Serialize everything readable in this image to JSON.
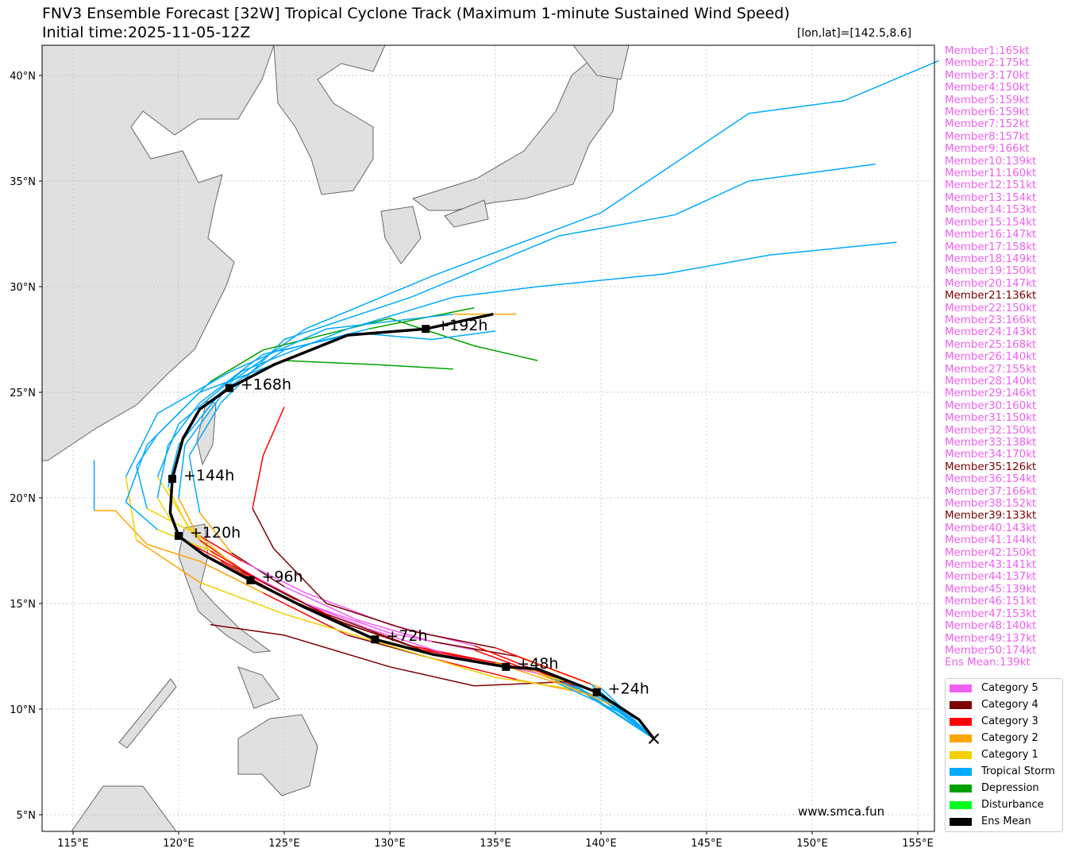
{
  "title": "FNV3 Ensemble Forecast [32W] Tropical Cyclone Track (Maximum 1-minute Sustained Wind Speed)",
  "subtitle": "Initial time:2025-11-05-12Z",
  "position_label": "[lon,lat]=[142.5,8.6]",
  "website": "www.smca.fun",
  "members": [
    {
      "label": "Member1:165kt",
      "cat": "5"
    },
    {
      "label": "Member2:175kt",
      "cat": "5"
    },
    {
      "label": "Member3:170kt",
      "cat": "5"
    },
    {
      "label": "Member4:150kt",
      "cat": "5"
    },
    {
      "label": "Member5:159kt",
      "cat": "5"
    },
    {
      "label": "Member6:159kt",
      "cat": "5"
    },
    {
      "label": "Member7:152kt",
      "cat": "5"
    },
    {
      "label": "Member8:157kt",
      "cat": "5"
    },
    {
      "label": "Member9:166kt",
      "cat": "5"
    },
    {
      "label": "Member10:139kt",
      "cat": "5"
    },
    {
      "label": "Member11:160kt",
      "cat": "5"
    },
    {
      "label": "Member12:151kt",
      "cat": "5"
    },
    {
      "label": "Member13:154kt",
      "cat": "5"
    },
    {
      "label": "Member14:153kt",
      "cat": "5"
    },
    {
      "label": "Member15:154kt",
      "cat": "5"
    },
    {
      "label": "Member16:147kt",
      "cat": "5"
    },
    {
      "label": "Member17:158kt",
      "cat": "5"
    },
    {
      "label": "Member18:149kt",
      "cat": "5"
    },
    {
      "label": "Member19:150kt",
      "cat": "5"
    },
    {
      "label": "Member20:147kt",
      "cat": "5"
    },
    {
      "label": "Member21:136kt",
      "cat": "4"
    },
    {
      "label": "Member22:150kt",
      "cat": "5"
    },
    {
      "label": "Member23:166kt",
      "cat": "5"
    },
    {
      "label": "Member24:143kt",
      "cat": "5"
    },
    {
      "label": "Member25:168kt",
      "cat": "5"
    },
    {
      "label": "Member26:140kt",
      "cat": "5"
    },
    {
      "label": "Member27:155kt",
      "cat": "5"
    },
    {
      "label": "Member28:140kt",
      "cat": "5"
    },
    {
      "label": "Member29:146kt",
      "cat": "5"
    },
    {
      "label": "Member30:160kt",
      "cat": "5"
    },
    {
      "label": "Member31:150kt",
      "cat": "5"
    },
    {
      "label": "Member32:150kt",
      "cat": "5"
    },
    {
      "label": "Member33:138kt",
      "cat": "5"
    },
    {
      "label": "Member34:170kt",
      "cat": "5"
    },
    {
      "label": "Member35:126kt",
      "cat": "4"
    },
    {
      "label": "Member36:154kt",
      "cat": "5"
    },
    {
      "label": "Member37:166kt",
      "cat": "5"
    },
    {
      "label": "Member38:152kt",
      "cat": "5"
    },
    {
      "label": "Member39:133kt",
      "cat": "4"
    },
    {
      "label": "Member40:143kt",
      "cat": "5"
    },
    {
      "label": "Member41:144kt",
      "cat": "5"
    },
    {
      "label": "Member42:150kt",
      "cat": "5"
    },
    {
      "label": "Member43:141kt",
      "cat": "5"
    },
    {
      "label": "Member44:137kt",
      "cat": "5"
    },
    {
      "label": "Member45:139kt",
      "cat": "5"
    },
    {
      "label": "Member46:151kt",
      "cat": "5"
    },
    {
      "label": "Member47:153kt",
      "cat": "5"
    },
    {
      "label": "Member48:140kt",
      "cat": "5"
    },
    {
      "label": "Member49:137kt",
      "cat": "5"
    },
    {
      "label": "Member50:174kt",
      "cat": "5"
    },
    {
      "label": "Ens Mean:139kt",
      "cat": "5"
    }
  ],
  "legend": [
    {
      "label": "Category 5",
      "key": "5"
    },
    {
      "label": "Category 4",
      "key": "4"
    },
    {
      "label": "Category 3",
      "key": "3"
    },
    {
      "label": "Category 2",
      "key": "2"
    },
    {
      "label": "Category 1",
      "key": "1"
    },
    {
      "label": "Tropical Storm",
      "key": "TS"
    },
    {
      "label": "Depression",
      "key": "TD"
    },
    {
      "label": "Disturbance",
      "key": "DB"
    },
    {
      "label": "Ens Mean",
      "key": "EM"
    }
  ],
  "colors": {
    "5": "#f060f0",
    "4": "#7f0000",
    "3": "#ff0000",
    "2": "#ffa500",
    "1": "#f0d000",
    "TS": "#00aaff",
    "TD": "#00a000",
    "DB": "#00ff20",
    "EM": "#000000",
    "land": "#e0e0e0",
    "coast": "#666666"
  },
  "chart_data": {
    "type": "map-track",
    "lon_range": [
      113.5,
      155.7
    ],
    "lat_range": [
      4.3,
      41.5
    ],
    "lon_ticks": [
      {
        "v": 115,
        "label": "115°E"
      },
      {
        "v": 120,
        "label": "120°E"
      },
      {
        "v": 125,
        "label": "125°E"
      },
      {
        "v": 130,
        "label": "130°E"
      },
      {
        "v": 135,
        "label": "135°E"
      },
      {
        "v": 140,
        "label": "140°E"
      },
      {
        "v": 145,
        "label": "145°E"
      },
      {
        "v": 150,
        "label": "150°E"
      },
      {
        "v": 155,
        "label": "155°E"
      }
    ],
    "lat_ticks": [
      {
        "v": 5,
        "label": "5°N"
      },
      {
        "v": 10,
        "label": "10°N"
      },
      {
        "v": 15,
        "label": "15°N"
      },
      {
        "v": 20,
        "label": "20°N"
      },
      {
        "v": 25,
        "label": "25°N"
      },
      {
        "v": 30,
        "label": "30°N"
      },
      {
        "v": 35,
        "label": "35°N"
      },
      {
        "v": 40,
        "label": "40°N"
      }
    ],
    "grid": true,
    "start": [
      142.5,
      8.6
    ],
    "ens_mean": [
      [
        142.5,
        8.6
      ],
      [
        141.8,
        9.5
      ],
      [
        139.8,
        10.8
      ],
      [
        137,
        11.9
      ],
      [
        135.5,
        12.0
      ],
      [
        132,
        12.6
      ],
      [
        129.3,
        13.3
      ],
      [
        126,
        14.8
      ],
      [
        123.4,
        16.1
      ],
      [
        121.2,
        17.3
      ],
      [
        120.0,
        18.2
      ],
      [
        119.6,
        19.3
      ],
      [
        119.7,
        20.9
      ],
      [
        120.2,
        22.8
      ],
      [
        121,
        24.2
      ],
      [
        122.4,
        25.2
      ],
      [
        124.5,
        26.3
      ],
      [
        128,
        27.7
      ],
      [
        131.7,
        28.0
      ],
      [
        134.9,
        28.7
      ]
    ],
    "ens_mean_labels": [
      {
        "label": "+24h",
        "lon": 139.8,
        "lat": 10.8
      },
      {
        "label": "+48h",
        "lon": 135.5,
        "lat": 12.0
      },
      {
        "label": "+72h",
        "lon": 129.3,
        "lat": 13.3
      },
      {
        "label": "+96h",
        "lon": 123.4,
        "lat": 16.1
      },
      {
        "label": "+120h",
        "lon": 120.0,
        "lat": 18.2
      },
      {
        "label": "+144h",
        "lon": 119.7,
        "lat": 20.9
      },
      {
        "label": "+168h",
        "lon": 122.4,
        "lat": 25.2
      },
      {
        "label": "+192h",
        "lon": 131.7,
        "lat": 28.0
      }
    ],
    "member_tracks": [
      [
        [
          142.5,
          8.6,
          "TD"
        ],
        [
          140,
          10.5,
          "TS"
        ],
        [
          137,
          11.8,
          "TS"
        ],
        [
          134,
          12.3,
          "2"
        ],
        [
          131,
          13,
          "3"
        ],
        [
          128,
          14,
          "4"
        ],
        [
          125,
          15.3,
          "4"
        ],
        [
          122,
          17,
          "3"
        ],
        [
          120.5,
          18.5,
          "1"
        ],
        [
          119.5,
          20.5,
          "1"
        ],
        [
          120,
          22.5,
          "TS"
        ],
        [
          122,
          25,
          "TS"
        ],
        [
          125,
          27,
          "TS"
        ],
        [
          129,
          28,
          "TS"
        ],
        [
          134,
          29,
          "TD"
        ]
      ],
      [
        [
          142.5,
          8.6,
          "TD"
        ],
        [
          140.5,
          10.3,
          "TS"
        ],
        [
          137.5,
          11.5,
          "TS"
        ],
        [
          134,
          12.8,
          "3"
        ],
        [
          130,
          13.6,
          "5"
        ],
        [
          126,
          15,
          "5"
        ],
        [
          123,
          16.6,
          "5"
        ],
        [
          121,
          18,
          "3"
        ],
        [
          120,
          20,
          "2"
        ],
        [
          120.3,
          22.5,
          "TS"
        ],
        [
          122.5,
          25.5,
          "TS"
        ],
        [
          126,
          28,
          "TS"
        ],
        [
          132,
          30.5,
          "TS"
        ],
        [
          140,
          33.5,
          "TS"
        ],
        [
          147,
          38.2,
          "TS"
        ],
        [
          151.5,
          38.8,
          "TS"
        ],
        [
          156,
          40.7,
          "TS"
        ]
      ],
      [
        [
          142.5,
          8.6,
          "TD"
        ],
        [
          140,
          11,
          "TS"
        ],
        [
          136,
          12.5,
          "2"
        ],
        [
          132,
          13.2,
          "4"
        ],
        [
          128.5,
          14.2,
          "5"
        ],
        [
          125,
          15.8,
          "5"
        ],
        [
          122.5,
          17.4,
          "4"
        ],
        [
          121,
          19.3,
          "2"
        ],
        [
          120.5,
          22,
          "TS"
        ],
        [
          122,
          24.5,
          "TS"
        ],
        [
          125,
          27.5,
          "TS"
        ],
        [
          131,
          29.5,
          "TS"
        ],
        [
          138,
          32.4,
          "TS"
        ],
        [
          143.5,
          33.4,
          "TS"
        ],
        [
          147,
          35,
          "TS"
        ],
        [
          153,
          35.8,
          "TS"
        ]
      ],
      [
        [
          142.5,
          8.6,
          "TD"
        ],
        [
          139,
          11,
          "TS"
        ],
        [
          134,
          13,
          "3"
        ],
        [
          130,
          14,
          "5"
        ],
        [
          126,
          15.5,
          "5"
        ],
        [
          123,
          17,
          "5"
        ],
        [
          121,
          18.2,
          "3"
        ],
        [
          118.5,
          19.5,
          "1"
        ],
        [
          118,
          21.5,
          "TS"
        ],
        [
          119,
          23,
          "TS"
        ],
        [
          121.5,
          25.5,
          "TS"
        ],
        [
          124,
          27,
          "TD"
        ],
        [
          130,
          28.5,
          "TD"
        ],
        [
          134,
          27.2,
          "TD"
        ],
        [
          137,
          26.5,
          "TD"
        ]
      ],
      [
        [
          142.5,
          8.6,
          "TD"
        ],
        [
          140,
          10.6,
          "TS"
        ],
        [
          136,
          11.4,
          "2"
        ],
        [
          132,
          12.4,
          "3"
        ],
        [
          128,
          13.5,
          "4"
        ],
        [
          124,
          15.5,
          "3"
        ],
        [
          121,
          17,
          "2"
        ],
        [
          118.5,
          17.8,
          "2"
        ],
        [
          117,
          19.4,
          "2"
        ],
        [
          116,
          19.4,
          "2"
        ],
        [
          116,
          21.8,
          "TS"
        ]
      ],
      [
        [
          142.5,
          8.6,
          "TD"
        ],
        [
          139.5,
          11.2,
          "TS"
        ],
        [
          135,
          12.9,
          "3"
        ],
        [
          131,
          13.7,
          "4"
        ],
        [
          127,
          15,
          "4"
        ],
        [
          124.5,
          17.6,
          "4"
        ],
        [
          123.5,
          19.5,
          "4"
        ],
        [
          124,
          22,
          "3"
        ],
        [
          125,
          24.3,
          "3"
        ]
      ],
      [
        [
          142.5,
          8.6,
          "TD"
        ],
        [
          140,
          10.8,
          "TS"
        ],
        [
          136,
          12,
          "1"
        ],
        [
          131,
          13,
          "3"
        ],
        [
          127,
          14.5,
          "4"
        ],
        [
          123,
          16.5,
          "3"
        ],
        [
          120.5,
          18.6,
          "1"
        ],
        [
          119,
          21,
          "1"
        ],
        [
          120,
          23.5,
          "TS"
        ],
        [
          123,
          26,
          "TS"
        ],
        [
          128,
          28,
          "TS"
        ],
        [
          133,
          29.5,
          "TS"
        ],
        [
          137,
          30,
          "TS"
        ],
        [
          143,
          30.6,
          "TS"
        ],
        [
          148,
          31.5,
          "TS"
        ],
        [
          154,
          32.1,
          "TS"
        ]
      ],
      [
        [
          142.5,
          8.6,
          "TD"
        ],
        [
          138.5,
          11.3,
          "TS"
        ],
        [
          134,
          11.1,
          "4"
        ],
        [
          130,
          12,
          "4"
        ],
        [
          125,
          13.5,
          "4"
        ],
        [
          121.5,
          14,
          "4"
        ]
      ],
      [
        [
          142.5,
          8.6,
          "TD"
        ],
        [
          139,
          10.9,
          "TS"
        ],
        [
          135,
          11.5,
          "1"
        ],
        [
          130,
          13,
          "1"
        ],
        [
          125,
          14.5,
          "1"
        ],
        [
          121,
          16,
          "1"
        ],
        [
          118,
          18,
          "2"
        ],
        [
          117.5,
          21,
          "1"
        ],
        [
          119,
          24,
          "TS"
        ],
        [
          122.5,
          26,
          "TS"
        ],
        [
          127,
          28,
          "TS"
        ],
        [
          133,
          28.7,
          "TS"
        ],
        [
          136,
          28.7,
          "2"
        ]
      ],
      [
        [
          142.5,
          8.6,
          "TD"
        ],
        [
          140.5,
          10.2,
          "TS"
        ],
        [
          137,
          11.7,
          "2"
        ],
        [
          133,
          12.5,
          "5"
        ],
        [
          129,
          13.8,
          "5"
        ],
        [
          125.5,
          15.2,
          "5"
        ],
        [
          122.5,
          16.8,
          "4"
        ],
        [
          120.2,
          18,
          "3"
        ],
        [
          119,
          20,
          "1"
        ],
        [
          119.5,
          22.5,
          "TS"
        ],
        [
          121,
          24.5,
          "TS"
        ],
        [
          124,
          26.8,
          "TS"
        ],
        [
          128.5,
          27.8,
          "TS"
        ],
        [
          132,
          27.5,
          "TS"
        ],
        [
          135,
          27.9,
          "TS"
        ]
      ],
      [
        [
          142.5,
          8.6,
          "TD"
        ],
        [
          141,
          9.8,
          "TS"
        ],
        [
          138,
          11.2,
          "TS"
        ],
        [
          135,
          12.2,
          "2"
        ],
        [
          131.5,
          12.8,
          "3"
        ],
        [
          127.5,
          14.2,
          "4"
        ],
        [
          124,
          16,
          "4"
        ],
        [
          121.5,
          17.5,
          "3"
        ],
        [
          119,
          18.5,
          "1"
        ],
        [
          117.5,
          19.8,
          "TS"
        ],
        [
          118.5,
          22.5,
          "TS"
        ],
        [
          121,
          25,
          "TS"
        ],
        [
          125,
          26.5,
          "TS"
        ],
        [
          129.5,
          26.3,
          "TD"
        ],
        [
          133,
          26.1,
          "TD"
        ]
      ]
    ]
  }
}
